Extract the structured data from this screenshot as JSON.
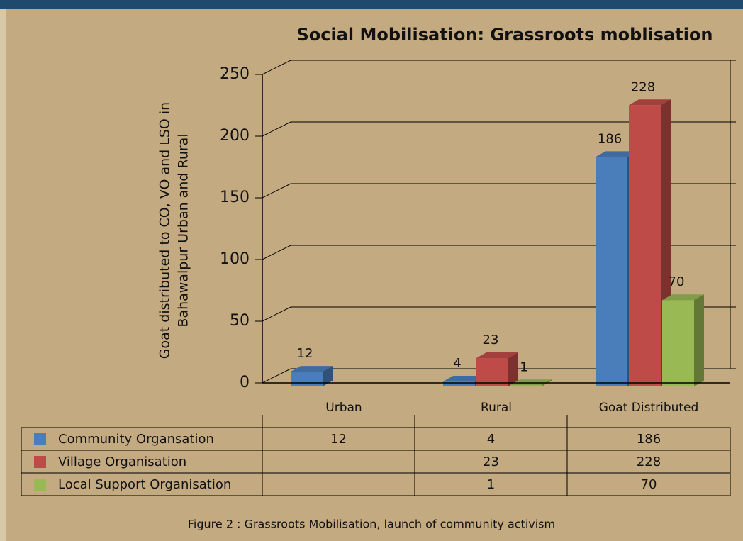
{
  "chart_data": {
    "type": "bar3d",
    "title": "Social Mobilisation: Grassroots moblisation",
    "y_label": [
      "Goat distributed to CO, VO and LSO in",
      "Bahawalpur Urban and Rural"
    ],
    "categories": [
      "Urban",
      "Rural",
      "Goat Distributed"
    ],
    "series": [
      {
        "name": "Community Organsation",
        "color": "#4a7ebb",
        "values": [
          12,
          4,
          186
        ]
      },
      {
        "name": "Village Organisation",
        "color": "#be4b48",
        "values": [
          null,
          23,
          228
        ]
      },
      {
        "name": "Local Support Organisation",
        "color": "#98b954",
        "values": [
          null,
          1,
          70
        ]
      }
    ],
    "ylim": [
      0,
      250
    ],
    "yticks": [
      0,
      50,
      100,
      150,
      200,
      250
    ],
    "grid": true,
    "caption": "Figure 2 : Grassroots Mobilisation, launch of community activism"
  }
}
